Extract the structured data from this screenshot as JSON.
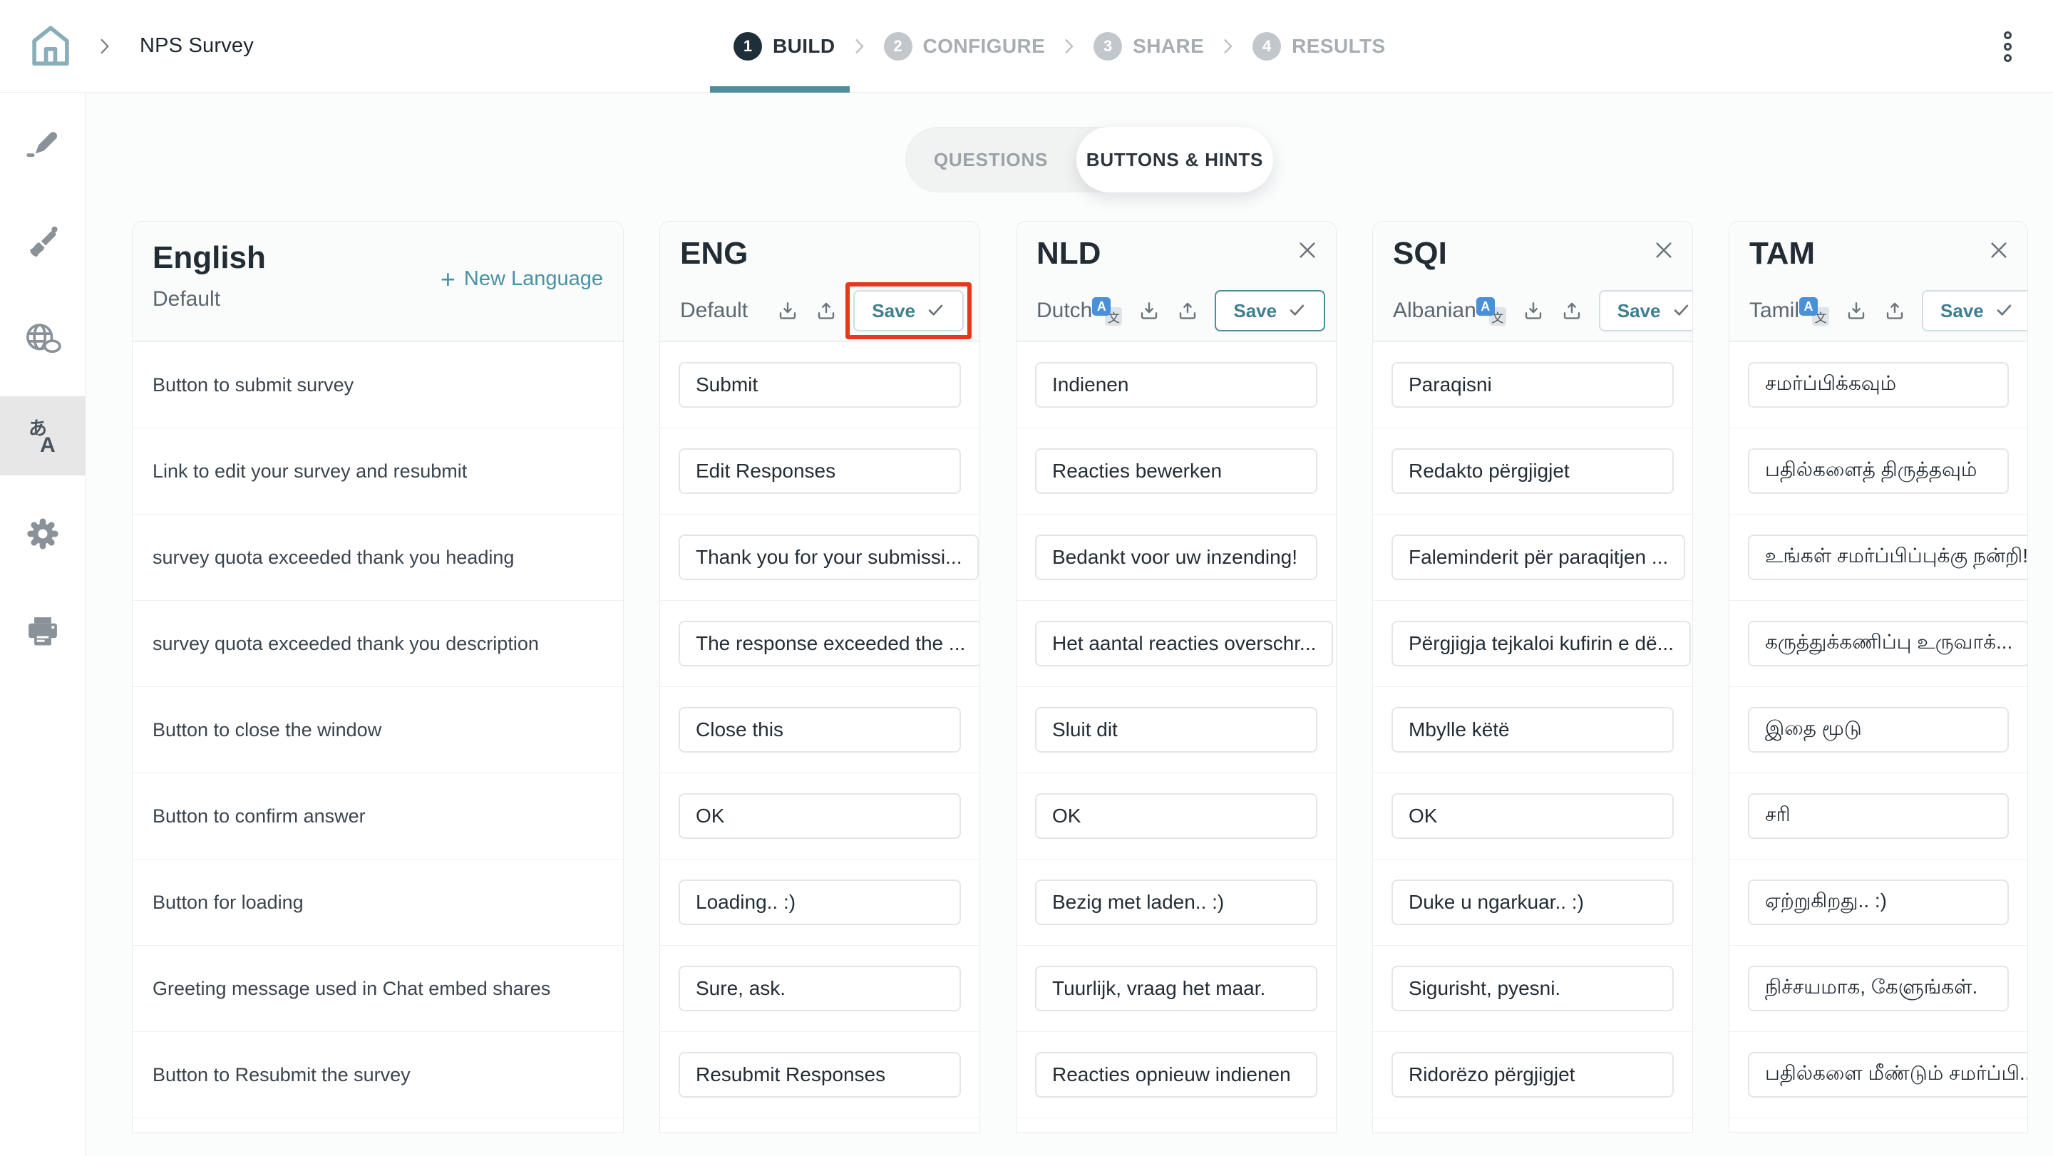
{
  "topbar": {
    "breadcrumb": "NPS Survey",
    "steps": [
      {
        "num": "1",
        "label": "BUILD",
        "active": true
      },
      {
        "num": "2",
        "label": "CONFIGURE",
        "active": false
      },
      {
        "num": "3",
        "label": "SHARE",
        "active": false
      },
      {
        "num": "4",
        "label": "RESULTS",
        "active": false
      }
    ]
  },
  "sidebar": {
    "items": [
      {
        "icon": "pencil-icon",
        "selected": false
      },
      {
        "icon": "paintbrush-icon",
        "selected": false
      },
      {
        "icon": "globe-icon",
        "selected": false
      },
      {
        "icon": "translate-icon",
        "selected": true
      },
      {
        "icon": "gear-icon",
        "selected": false
      },
      {
        "icon": "printer-icon",
        "selected": false
      }
    ]
  },
  "tabs": [
    {
      "label": "QUESTIONS",
      "active": false
    },
    {
      "label": "BUTTONS & HINTS",
      "active": true
    }
  ],
  "labels_column": {
    "title": "English",
    "subtitle": "Default",
    "new_language": "New Language",
    "rows": [
      "Button to submit survey",
      "Link to edit your survey and resubmit",
      "survey quota exceeded thank you heading",
      "survey quota exceeded thank you description",
      "Button to close the window",
      "Button to confirm answer",
      "Button for loading",
      "Greeting message used in Chat embed shares",
      "Button to Resubmit the survey"
    ]
  },
  "save_label": "Save",
  "languages": [
    {
      "code": "ENG",
      "name": "Default",
      "closable": false,
      "has_translate": false,
      "save_highlighted": true,
      "values": [
        "Submit",
        "Edit Responses",
        "Thank you for your submissi...",
        "The response exceeded the ...",
        "Close this",
        "OK",
        "Loading.. :)",
        "Sure, ask.",
        "Resubmit Responses"
      ]
    },
    {
      "code": "NLD",
      "name": "Dutch",
      "closable": true,
      "has_translate": true,
      "save_highlighted": false,
      "values": [
        "Indienen",
        "Reacties bewerken",
        "Bedankt voor uw inzending!",
        "Het aantal reacties overschr...",
        "Sluit dit",
        "OK",
        "Bezig met laden.. :)",
        "Tuurlijk, vraag het maar.",
        "Reacties opnieuw indienen"
      ]
    },
    {
      "code": "SQI",
      "name": "Albanian",
      "closable": true,
      "has_translate": true,
      "save_highlighted": false,
      "values": [
        "Paraqisni",
        "Redakto përgjigjet",
        "Faleminderit për paraqitjen ...",
        "Përgjigja tejkaloi kufirin e dë...",
        "Mbylle këtë",
        "OK",
        "Duke u ngarkuar.. :)",
        "Sigurisht, pyesni.",
        "Ridorëzo përgjigjet"
      ]
    },
    {
      "code": "TAM",
      "name": "Tamil",
      "closable": true,
      "has_translate": true,
      "save_highlighted": false,
      "values": [
        "சமர்ப்பிக்கவும்",
        "பதில்களைத் திருத்தவும்",
        "உங்கள் சமர்ப்பிப்புக்கு நன்றி!",
        "கருத்துக்கணிப்பு உருவாக்...",
        "இதை மூடு",
        "சரி",
        "ஏற்றுகிறது.. :)",
        "நிச்சயமாக, கேளுங்கள்.",
        "பதில்களை மீண்டும் சமர்ப்பி..."
      ]
    }
  ],
  "colors": {
    "accent_teal": "#4f8d9d",
    "highlight_red": "#e6391c"
  }
}
